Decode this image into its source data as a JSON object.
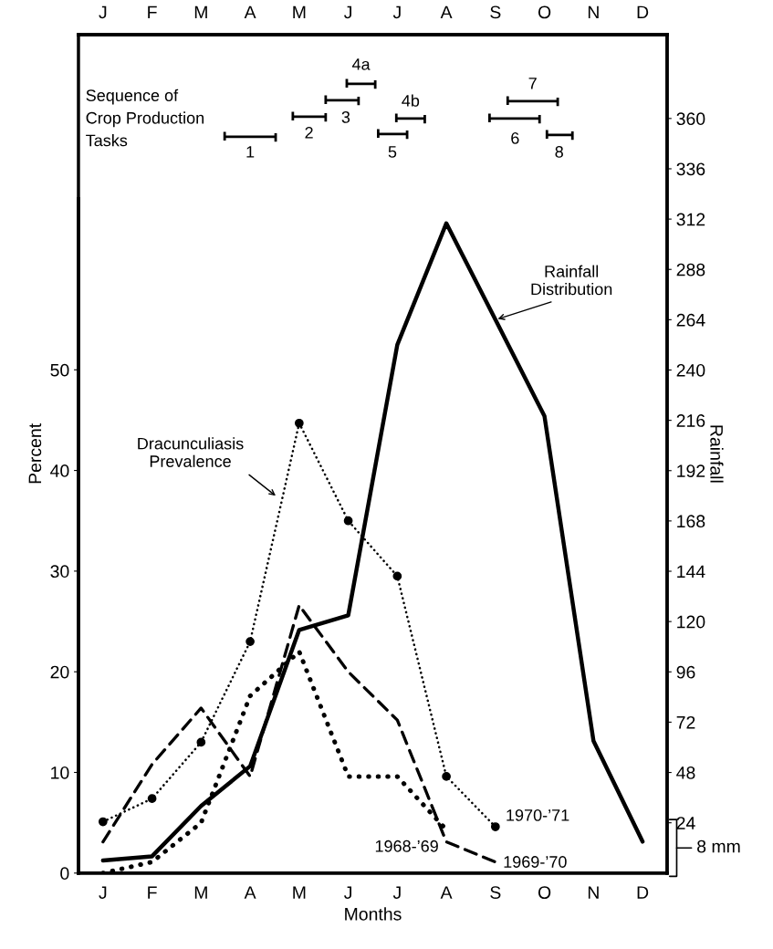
{
  "chart_data": [
    {
      "type": "other",
      "title": "Sequence of\nCrop Production\nTasks",
      "annotations": [
        "1",
        "2",
        "3",
        "4a",
        "4b",
        "5",
        "6",
        "7",
        "8"
      ]
    },
    {
      "type": "line",
      "categories": [
        "J",
        "F",
        "M",
        "A",
        "M",
        "J",
        "J",
        "A",
        "S",
        "O",
        "N",
        "D"
      ],
      "xlabel": "Months",
      "ylabel": "Percent",
      "y2label": "Rainfall",
      "ylim": [
        0,
        83.3
      ],
      "yticks": [
        0,
        10,
        20,
        30,
        40,
        50
      ],
      "y2lim": [
        0,
        400
      ],
      "y2ticks": [
        24,
        48,
        72,
        96,
        120,
        144,
        168,
        192,
        216,
        240,
        264,
        288,
        312,
        336,
        360
      ],
      "annotations": [
        "Dracunculiasis\nPrevalence",
        "8 mm"
      ],
      "series": [
        {
          "name": "Rainfall\nDistribution",
          "axis": "y2",
          "color": "#000000",
          "line_style": "solid",
          "marker": "none",
          "values": [
            6,
            8,
            32,
            51,
            116,
            123,
            252,
            310,
            264,
            218,
            63,
            15
          ]
        },
        {
          "name": "1970-’71",
          "color": "#000000",
          "line_style": "dotted",
          "marker": "circle",
          "values": [
            5.1,
            7.4,
            13,
            23,
            44.7,
            35,
            29.5,
            9.6,
            4.6,
            null,
            null,
            null
          ]
        },
        {
          "name": "1968-’69",
          "color": "#000000",
          "line_style": "dotted",
          "marker": "none",
          "values": [
            0,
            1.1,
            5,
            17.6,
            22,
            9.6,
            9.6,
            4.3,
            null,
            null,
            null,
            null
          ]
        },
        {
          "name": "1969-’70",
          "color": "#000000",
          "line_style": "dashed",
          "marker": "none",
          "values": [
            3.1,
            10.8,
            16.4,
            9.6,
            26.6,
            20,
            15.2,
            3.1,
            1.1,
            null,
            null,
            null
          ]
        }
      ]
    }
  ]
}
